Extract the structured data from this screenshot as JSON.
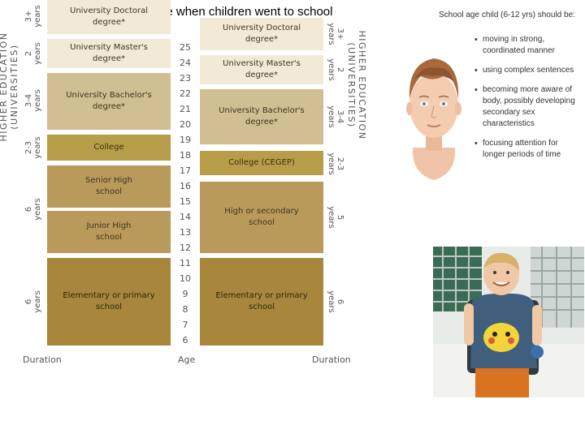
{
  "slide_title": "Age when children went to school",
  "left_chart": {
    "header": "HIGHER EDUCATION\n(UNIVERSITIES)",
    "blocks": [
      {
        "label": "University Doctoral\ndegree*",
        "duration": "3+\nyears"
      },
      {
        "label": "University Master's\ndegree*",
        "duration": "2\nyears"
      },
      {
        "label": "University Bachelor's\ndegree*",
        "duration": "3-4\nyears"
      },
      {
        "label": "College",
        "duration": "2-3\nyears"
      },
      {
        "label": "Senior High\nschool",
        "duration": ""
      },
      {
        "label": "Junior High\nschool",
        "duration": "6\nyears"
      },
      {
        "label": "Elementary or primary\nschool",
        "duration": "6\nyears"
      }
    ],
    "footer_label": "Duration"
  },
  "ages": {
    "values": [
      "25",
      "24",
      "23",
      "22",
      "21",
      "20",
      "19",
      "18",
      "17",
      "16",
      "15",
      "14",
      "13",
      "12",
      "11",
      "10",
      "9",
      "8",
      "7",
      "6"
    ],
    "footer_label": "Age"
  },
  "right_chart": {
    "header": "HIGHER EDUCATION\n(UNIVERSITIES)",
    "blocks": [
      {
        "label": "University Doctoral\ndegree*",
        "duration": "3+\nyears"
      },
      {
        "label": "University Master's\ndegree*",
        "duration": "2\nyears"
      },
      {
        "label": "University Bachelor's\ndegree*",
        "duration": "3-4\nyears"
      },
      {
        "label": "College (CEGEP)",
        "duration": "2-3\nyears"
      },
      {
        "label": "High or secondary\nschool",
        "duration": "5\nyears"
      },
      {
        "label": "Elementary or primary\nschool",
        "duration": "6\nyears"
      }
    ],
    "footer_label": "Duration"
  },
  "development_panel": {
    "title": "School age child (6-12 yrs) should be:",
    "bullets": [
      "moving in strong, coordinated manner",
      "using complex sentences",
      "becoming more aware of body, possibly developing secondary sex characteristics",
      "focusing attention for longer periods of time"
    ]
  },
  "colors": {
    "light": "#f2ead7",
    "mid": "#cfbf92",
    "olive": "#b79d49",
    "tan": "#b99a5a",
    "brown": "#a8873c"
  },
  "images": {
    "illustration": "child-face-illustration",
    "photo": "boy-with-backpack-photo"
  }
}
